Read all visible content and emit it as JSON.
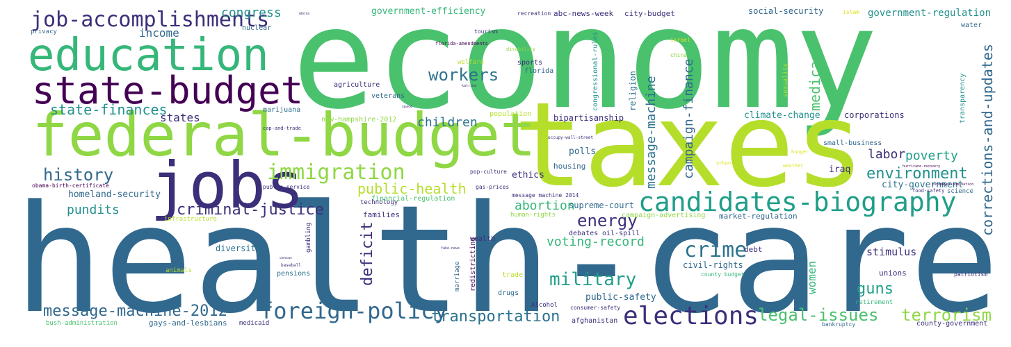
{
  "colors": {
    "navy": "#440154",
    "indigo": "#3b528b",
    "blue": "#31688e",
    "steel": "#2c728e",
    "teal": "#21918c",
    "sea": "#1f9e89",
    "green": "#35b779",
    "mint": "#4ac16d",
    "lime": "#8fd744",
    "chartreuse": "#b5de2b",
    "yellow": "#dde318",
    "gold": "#fde725"
  },
  "words": {
    "health_care": "health-care",
    "economy": "economy",
    "taxes": "taxes",
    "federal_budget": "federal-budget",
    "jobs": "jobs",
    "education": "education",
    "state_budget": "state-budget",
    "candidates_biography": "candidates-biography",
    "elections": "elections",
    "foreign_policy": "foreign-policy",
    "immigration": "immigration",
    "job_accomplishments": "job-accomplishments",
    "crime": "crime",
    "military": "military",
    "criminal_justice": "criminal-justice",
    "history": "history",
    "workers": "workers",
    "legal_issues": "legal-issues",
    "terrorism": "terrorism",
    "energy": "energy",
    "message_machine_2012": "message-machine-2012",
    "transportation": "transportation",
    "environment": "environment",
    "state_finances": "state-finances",
    "guns": "guns",
    "public_health": "public-health",
    "voting_record": "voting-record",
    "abortion": "abortion",
    "poverty": "poverty",
    "pundits": "pundits",
    "children": "children",
    "congress": "congress",
    "income": "income",
    "states": "states",
    "labor": "labor",
    "message_machine": "message-machine",
    "campaign_finance": "campaign-finance",
    "corrections_and_updates": "corrections-and-updates",
    "medicare": "medicare",
    "deficit": "deficit",
    "women": "women",
    "government_efficiency": "government-efficiency",
    "government_regulation": "government-regulation",
    "homeland_security": "homeland-security",
    "stimulus": "stimulus",
    "public_safety": "public-safety",
    "city_government": "city-government",
    "civil_rights": "civil-rights",
    "climate_change": "climate-change",
    "corporations": "corporations",
    "supreme_court": "supreme-court",
    "social_security": "social-security",
    "iraq": "iraq",
    "polls": "polls",
    "ethics": "ethics",
    "families": "families",
    "diversity": "diversity",
    "bipartisanship": "bipartisanship",
    "housing": "housing",
    "city_budget": "city-budget",
    "abc_news_week": "abc-news-week",
    "debates": "debates",
    "oil_spill": "oil-spill",
    "marijuana": "marijuana",
    "veterans": "veterans",
    "agriculture": "agriculture",
    "sports": "sports",
    "florida": "florida",
    "financial_regulation": "financial-regulation",
    "technology": "technology",
    "new_hampshire_2012": "new-hampshire-2012",
    "population": "population",
    "market_regulation": "market-regulation",
    "campaign_advertising": "campaign-advertising",
    "human_rights": "human-rights",
    "small_business": "small-business",
    "nuclear": "nuclear",
    "privacy": "privacy",
    "water": "water",
    "unions": "unions",
    "debt": "debt",
    "wealth": "wealth",
    "trade": "trade",
    "drugs": "drugs",
    "science": "science",
    "pensions": "pensions",
    "infrastructure": "infrastructure",
    "public_service": "public-service",
    "obama_birth_certificate": "obama-birth-certificate",
    "afghanistan": "afghanistan",
    "county_government": "county-government",
    "gays_and_lesbians": "gays-and-lesbians",
    "medicaid": "medicaid",
    "bush_administration": "bush-administration",
    "retirement": "retirement",
    "bankruptcy": "bankruptcy",
    "patriotism": "patriotism",
    "consumer_safety": "consumer-safety",
    "alcohol": "Alcohol",
    "animals": "animals",
    "redistricting": "redistricting",
    "marriage": "marriage",
    "gambling": "gambling",
    "welfare": "welfare",
    "tourism": "tourism",
    "recreation": "recreation",
    "islam": "islam",
    "israel": "israel",
    "china": "china",
    "religion": "religion",
    "congressional_rules": "congressional-rules",
    "transparency": "transparency",
    "sexuality": "sexuality",
    "disability": "disability",
    "florida_amendments": "florida-amendments",
    "cap_and_trade": "cap-and-trade",
    "pop_culture": "pop-culture",
    "gas_prices": "gas-prices",
    "food_safety": "food-safety",
    "message_machine_2014": "message machine 2014",
    "county_budget": "county budget",
    "occupy_wall_street": "occupy-wall-street",
    "urban": "urban",
    "hunger": "hunger",
    "weather": "weather",
    "space": "space",
    "katrina": "katrina",
    "baseball": "baseball",
    "census": "census",
    "fake_news": "fake-news",
    "ebola": "ebola",
    "sotomayor": "sotomayor-nomination",
    "hurricane": "hurricane-recovery",
    "tiny_top": "foreign-policy"
  }
}
